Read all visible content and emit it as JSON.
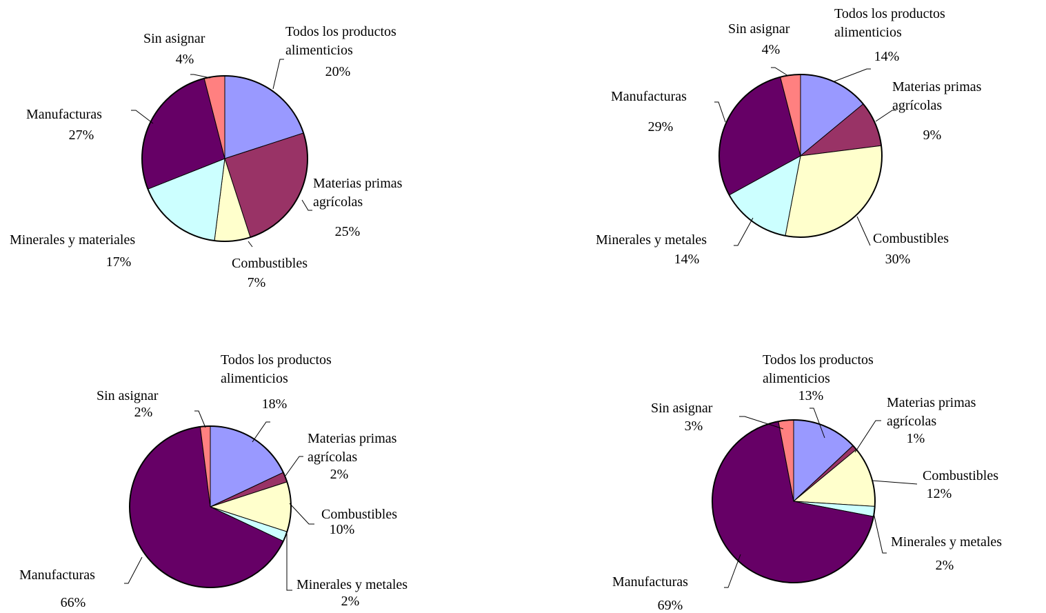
{
  "chart_data": [
    {
      "type": "pie",
      "slices": [
        {
          "label": [
            "Todos los productos",
            "alimenticios"
          ],
          "value": 20,
          "pct": "20%",
          "color": "#9999ff"
        },
        {
          "label": [
            "Materias primas",
            "agrícolas"
          ],
          "value": 25,
          "pct": "25%",
          "color": "#993366"
        },
        {
          "label": [
            "Combustibles"
          ],
          "value": 7,
          "pct": "7%",
          "color": "#ffffcc"
        },
        {
          "label": [
            "Minerales y materiales"
          ],
          "value": 17,
          "pct": "17%",
          "color": "#ccffff"
        },
        {
          "label": [
            "Manufacturas"
          ],
          "value": 27,
          "pct": "27%",
          "color": "#660066"
        },
        {
          "label": [
            "Sin asignar"
          ],
          "value": 4,
          "pct": "4%",
          "color": "#ff8080"
        }
      ]
    },
    {
      "type": "pie",
      "slices": [
        {
          "label": [
            "Todos los productos",
            "alimenticios"
          ],
          "value": 14,
          "pct": "14%",
          "color": "#9999ff"
        },
        {
          "label": [
            "Materias primas",
            "agrícolas"
          ],
          "value": 9,
          "pct": "9%",
          "color": "#993366"
        },
        {
          "label": [
            "Combustibles"
          ],
          "value": 30,
          "pct": "30%",
          "color": "#ffffcc"
        },
        {
          "label": [
            "Minerales y metales"
          ],
          "value": 14,
          "pct": "14%",
          "color": "#ccffff"
        },
        {
          "label": [
            "Manufacturas"
          ],
          "value": 29,
          "pct": "29%",
          "color": "#660066"
        },
        {
          "label": [
            "Sin asignar"
          ],
          "value": 4,
          "pct": "4%",
          "color": "#ff8080"
        }
      ]
    },
    {
      "type": "pie",
      "slices": [
        {
          "label": [
            "Todos los productos",
            "alimenticios"
          ],
          "value": 18,
          "pct": "18%",
          "color": "#9999ff"
        },
        {
          "label": [
            "Materias primas",
            "agrícolas"
          ],
          "value": 2,
          "pct": "2%",
          "color": "#993366"
        },
        {
          "label": [
            "Combustibles"
          ],
          "value": 10,
          "pct": "10%",
          "color": "#ffffcc"
        },
        {
          "label": [
            "Minerales y metales"
          ],
          "value": 2,
          "pct": "2%",
          "color": "#ccffff"
        },
        {
          "label": [
            "Manufacturas"
          ],
          "value": 66,
          "pct": "66%",
          "color": "#660066"
        },
        {
          "label": [
            "Sin asignar"
          ],
          "value": 2,
          "pct": "2%",
          "color": "#ff8080"
        }
      ]
    },
    {
      "type": "pie",
      "slices": [
        {
          "label": [
            "Todos los productos",
            "alimenticios"
          ],
          "value": 13,
          "pct": "13%",
          "color": "#9999ff"
        },
        {
          "label": [
            "Materias primas",
            "agrícolas"
          ],
          "value": 1,
          "pct": "1%",
          "color": "#993366"
        },
        {
          "label": [
            "Combustibles"
          ],
          "value": 12,
          "pct": "12%",
          "color": "#ffffcc"
        },
        {
          "label": [
            "Minerales y metales"
          ],
          "value": 2,
          "pct": "2%",
          "color": "#ccffff"
        },
        {
          "label": [
            "Manufacturas"
          ],
          "value": 69,
          "pct": "69%",
          "color": "#660066"
        },
        {
          "label": [
            "Sin asignar"
          ],
          "value": 3,
          "pct": "3%",
          "color": "#ff8080"
        }
      ]
    }
  ]
}
